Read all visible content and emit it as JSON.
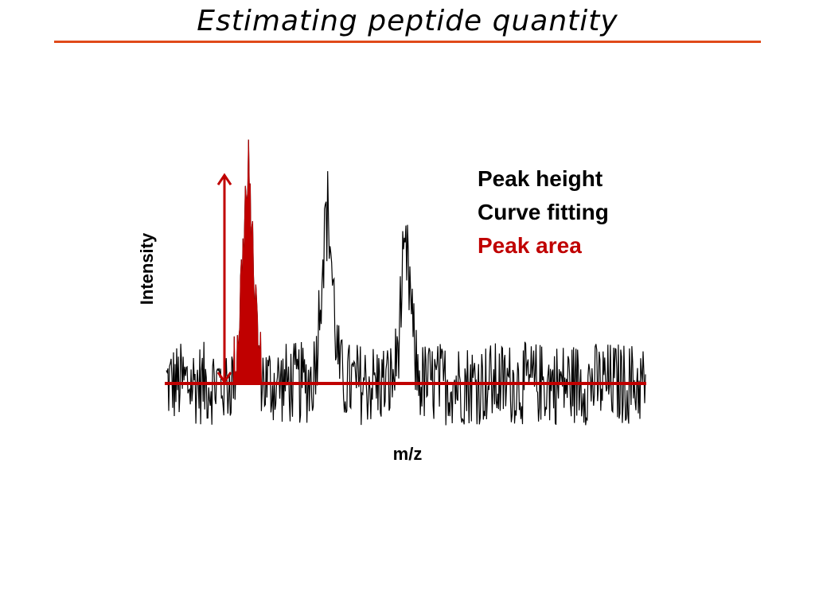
{
  "slide": {
    "title": "Estimating peptide quantity",
    "methods": [
      {
        "label": "Peak height",
        "color": "#000000"
      },
      {
        "label": "Curve fitting",
        "color": "#000000"
      },
      {
        "label": "Peak area",
        "color": "#c00000"
      }
    ]
  },
  "colors": {
    "accent": "#c00000",
    "rule": "#e04a1a",
    "trace": "#000000"
  },
  "chart_data": {
    "type": "line",
    "xlabel": "m/z",
    "ylabel": "Intensity",
    "title": "",
    "ylim": [
      -1,
      4.6
    ],
    "baseline": 0,
    "peaks": [
      {
        "center": 0.17,
        "width": 0.012,
        "height": 4.1,
        "highlighted": true
      },
      {
        "center": 0.335,
        "width": 0.012,
        "height": 3.6,
        "highlighted": false
      },
      {
        "center": 0.5,
        "width": 0.011,
        "height": 2.6,
        "highlighted": false
      }
    ],
    "annotations": [
      {
        "type": "peak-height-arrow",
        "target_peak": 0
      }
    ]
  }
}
